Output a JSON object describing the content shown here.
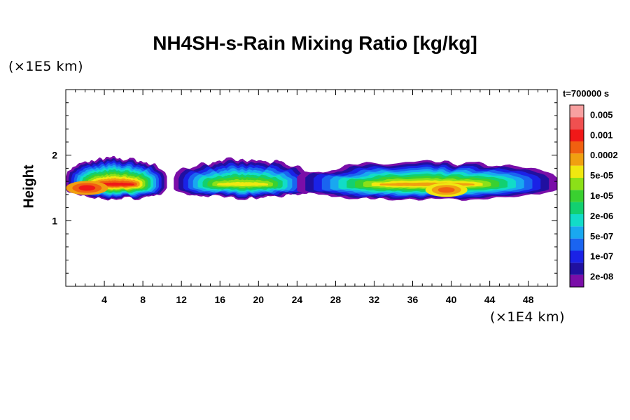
{
  "chart_data": {
    "type": "heatmap",
    "title": "NH4SH-s-Rain Mixing Ratio [kg/kg]",
    "ylabel": "Height",
    "y_unit_label": "(×1E5 km)",
    "x_unit_label": "(×1E4 km)",
    "time_label": "t=700000 s",
    "xlim": [
      0,
      51
    ],
    "ylim": [
      0,
      3
    ],
    "x_ticks": [
      "4",
      "8",
      "12",
      "16",
      "20",
      "24",
      "28",
      "32",
      "36",
      "40",
      "44",
      "48"
    ],
    "x_tick_values": [
      4,
      8,
      12,
      16,
      20,
      24,
      28,
      32,
      36,
      40,
      44,
      48
    ],
    "y_ticks": [
      "1",
      "2"
    ],
    "y_tick_values": [
      1,
      2
    ],
    "colorbar": {
      "labels": [
        "0.005",
        "0.001",
        "0.0002",
        "5e-05",
        "1e-05",
        "2e-06",
        "5e-07",
        "1e-07",
        "2e-08"
      ],
      "colors": [
        "#7a0ea8",
        "#2010a0",
        "#1a22e6",
        "#1a64f0",
        "#19a8f0",
        "#12dcc8",
        "#12d070",
        "#3ad030",
        "#8ce018",
        "#f0e810",
        "#f0a010",
        "#f06010",
        "#f01818",
        "#f05050",
        "#f8a0a0"
      ]
    },
    "layer": {
      "y_center": 1.55,
      "y_min": 1.32,
      "y_max": 1.95,
      "peak_regions": [
        {
          "x": 2.2,
          "y": 1.5,
          "level": "0.001"
        },
        {
          "x": 39.5,
          "y": 1.47,
          "level": "0.0002"
        }
      ]
    }
  }
}
